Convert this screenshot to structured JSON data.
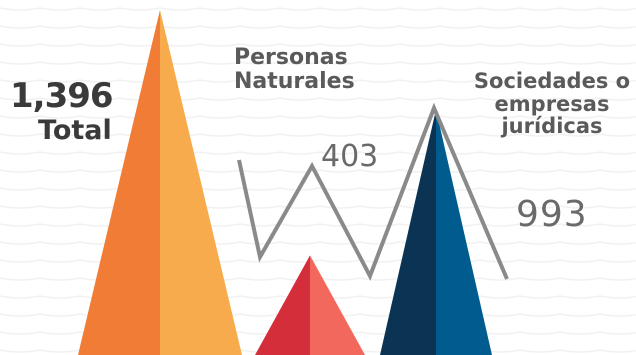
{
  "colors": {
    "total_left": "#f07c36",
    "total_right": "#f7ab4c",
    "persons_left": "#d42e3a",
    "persons_right": "#f2685c",
    "companies_left": "#0b3454",
    "companies_right": "#005c8e",
    "zigzag": "#8a8a8a",
    "text_dark": "#3a3a3a",
    "text_gray": "#5a5a5a"
  },
  "labels": {
    "total_value": "1,396",
    "total_label": "Total",
    "persons_label": "Personas\nNaturales",
    "persons_value": "403",
    "companies_label": "Sociedades o\nempresas\njurídicas",
    "companies_value": "993"
  },
  "chart_data": {
    "type": "bar",
    "categories": [
      "Total",
      "Personas Naturales",
      "Sociedades o empresas jurídicas"
    ],
    "values": [
      1396,
      403,
      993
    ],
    "title": "",
    "xlabel": "",
    "ylabel": ""
  }
}
